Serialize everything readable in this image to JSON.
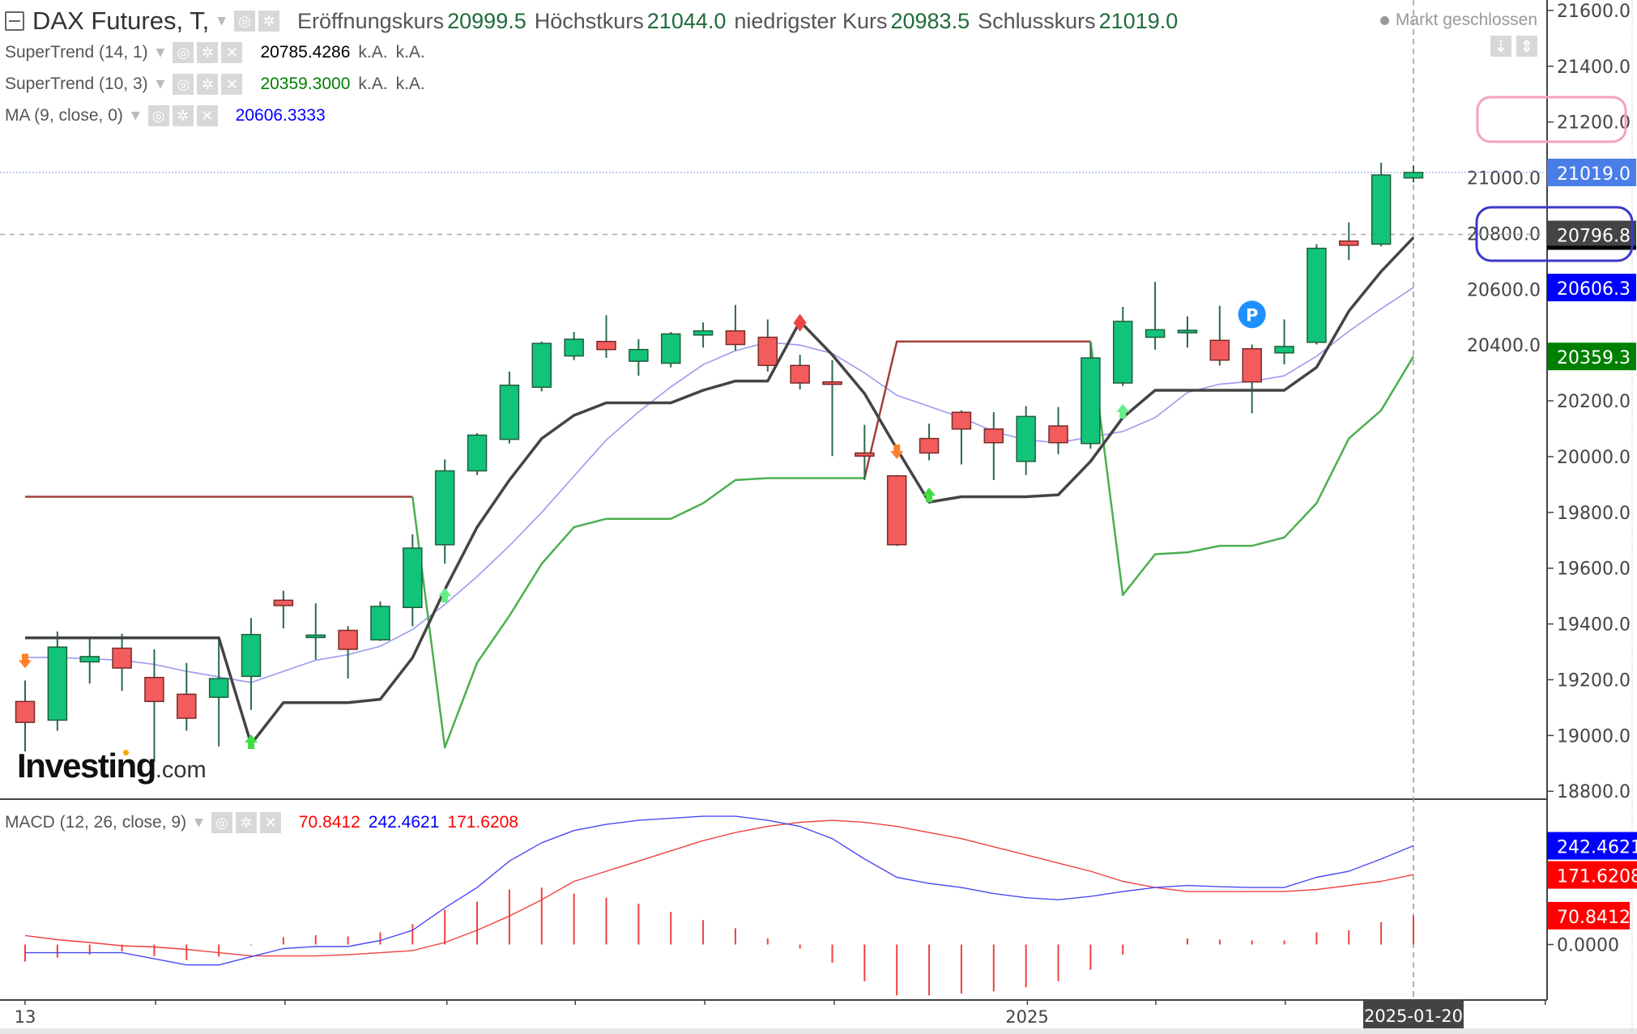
{
  "header": {
    "symbol": "DAX Futures, T,",
    "open_label": "Eröffnungskurs",
    "open": "20999.5",
    "high_label": "Höchstkurs",
    "high": "21044.0",
    "low_label": "niedrigster Kurs",
    "low": "20983.5",
    "close_label": "Schlusskurs",
    "close": "21019.0",
    "status": "Markt geschlossen"
  },
  "indicators": [
    {
      "name": "SuperTrend (14, 1)",
      "value": "20785.4286",
      "v2": "k.A.",
      "v3": "k.A.",
      "color": "#000000"
    },
    {
      "name": "SuperTrend (10, 3)",
      "value": "20359.3000",
      "v2": "k.A.",
      "v3": "k.A.",
      "color": "#008000"
    },
    {
      "name": "MA (9, close, 0)",
      "value": "20606.3333",
      "color": "#0000ff"
    }
  ],
  "macd_legend": {
    "name": "MACD (12, 26, close, 9)",
    "hist": "70.8412",
    "macd": "242.4621",
    "signal": "171.6208"
  },
  "icons": {
    "visibility": "eye-icon",
    "settings": "gear-icon",
    "remove": "close-icon",
    "collapse": "minus-square-icon",
    "scroll_down": "arrow-down-icon",
    "scroll_fit": "arrow-updown-icon"
  },
  "logo": {
    "main": "Investing",
    "domain": ".com"
  },
  "colors": {
    "up": "#12c47a",
    "down": "#f25c5c",
    "wick": "#2a6a4a",
    "supertrend14": "#444444",
    "supertrend_upper": "#a0403c",
    "supertrend_lower": "#4caf50",
    "ma": "#9a9af0",
    "macd": "#4a4af5",
    "signal": "#f04040",
    "hist": "#f04040"
  },
  "chart_data": [
    {
      "type": "candlestick",
      "ylim": [
        18800,
        21600
      ],
      "y_ticks": [
        "21600.0",
        "21400.0",
        "21200.0",
        "21000.0",
        "20800.0",
        "20600.0",
        "20400.0",
        "20200.0",
        "20000.0",
        "19800.0",
        "19600.0",
        "19400.0",
        "19200.0",
        "19000.0",
        "18800.0"
      ],
      "x_labels": [
        "13",
        "2025"
      ],
      "crosshair_date": "2025-01-20",
      "crosshair_price": "20796.8",
      "price_badges": [
        {
          "label": "21019.0",
          "value": 21019.0,
          "color": "#4a7de8"
        },
        {
          "label": "20796.8",
          "value": 20796.8,
          "color": "#444444"
        },
        {
          "label": "20606.3",
          "value": 20606.3,
          "color": "#0000ff"
        },
        {
          "label": "20359.3",
          "value": 20359.3,
          "color": "#008000"
        }
      ],
      "annotations": [
        {
          "target": "21200.0",
          "color": "#f5a0c0"
        },
        {
          "target": "20796.8",
          "color": "#3a3ac8"
        }
      ],
      "ohlc": [
        [
          19122,
          19197,
          18943,
          19047
        ],
        [
          19055,
          19373,
          19017,
          19317
        ],
        [
          19264,
          19354,
          19186,
          19283
        ],
        [
          19313,
          19365,
          19160,
          19242
        ],
        [
          19208,
          19309,
          18905,
          19122
        ],
        [
          19148,
          19260,
          19017,
          19062
        ],
        [
          19137,
          19354,
          18961,
          19204
        ],
        [
          19212,
          19421,
          19092,
          19362
        ],
        [
          19485,
          19519,
          19384,
          19466
        ],
        [
          19356,
          19474,
          19272,
          19360
        ],
        [
          19377,
          19392,
          19204,
          19309
        ],
        [
          19343,
          19481,
          19339,
          19463
        ],
        [
          19459,
          19721,
          19392,
          19672
        ],
        [
          19684,
          19990,
          19616,
          19949
        ],
        [
          19949,
          20084,
          19934,
          20077
        ],
        [
          20062,
          20305,
          20047,
          20256
        ],
        [
          20249,
          20413,
          20234,
          20406
        ],
        [
          20361,
          20447,
          20346,
          20421
        ],
        [
          20413,
          20507,
          20354,
          20384
        ],
        [
          20342,
          20421,
          20290,
          20384
        ],
        [
          20335,
          20447,
          20320,
          20440
        ],
        [
          20436,
          20481,
          20391,
          20451
        ],
        [
          20451,
          20544,
          20380,
          20402
        ],
        [
          20428,
          20492,
          20305,
          20327
        ],
        [
          20327,
          20365,
          20241,
          20264
        ],
        [
          20268,
          20346,
          20002,
          20264
        ],
        [
          20013,
          20114,
          19916,
          20002
        ],
        [
          19931,
          19934,
          19680,
          19684
        ],
        [
          20065,
          20118,
          19987,
          20013
        ],
        [
          20159,
          20166,
          19972,
          20099
        ],
        [
          20099,
          20159,
          19916,
          20050
        ],
        [
          19983,
          20181,
          19934,
          20144
        ],
        [
          20110,
          20178,
          20009,
          20050
        ],
        [
          20047,
          20410,
          20028,
          20354
        ],
        [
          20264,
          20537,
          20253,
          20485
        ],
        [
          20428,
          20627,
          20384,
          20455
        ],
        [
          20449,
          20503,
          20391,
          20453
        ],
        [
          20417,
          20541,
          20327,
          20346
        ],
        [
          20387,
          20402,
          20155,
          20268
        ],
        [
          20372,
          20492,
          20331,
          20395
        ],
        [
          20410,
          20762,
          20402,
          20747
        ],
        [
          20773,
          20840,
          20705,
          20758
        ],
        [
          20762,
          21054,
          20754,
          21010
        ],
        [
          20999.5,
          21044.0,
          20983.5,
          21019.0
        ]
      ],
      "supertrend_14_1": [
        19350,
        19350,
        19350,
        19350,
        19350,
        19350,
        19350,
        18969,
        19118,
        19118,
        19118,
        19130,
        19279,
        19523,
        19747,
        19916,
        20065,
        20148,
        20193,
        20193,
        20193,
        20238,
        20271,
        20271,
        20485,
        20365,
        20226,
        20028,
        19837,
        19856,
        19856,
        19856,
        19863,
        19983,
        20140,
        20238,
        20238,
        20238,
        20238,
        20238,
        20320,
        20522,
        20664,
        20785.4286
      ],
      "supertrend_10_3_upper": [
        19856,
        19856,
        19856,
        19856,
        19856,
        19856,
        19856,
        19856,
        19856,
        19856,
        19856,
        19856,
        19856,
        null,
        null,
        null,
        null,
        null,
        null,
        null,
        null,
        null,
        null,
        null,
        null,
        null,
        19923,
        20413,
        20413,
        20413,
        20413,
        20413,
        20413,
        20413,
        null,
        null,
        null,
        null,
        null,
        null,
        null,
        null,
        null,
        null
      ],
      "supertrend_10_3_lower": [
        null,
        null,
        null,
        null,
        null,
        null,
        null,
        null,
        null,
        null,
        null,
        null,
        19856,
        18957,
        19261,
        19429,
        19616,
        19747,
        19777,
        19777,
        19777,
        19833,
        19916,
        19923,
        19923,
        19923,
        19923,
        null,
        null,
        null,
        null,
        null,
        null,
        20413,
        19504,
        19650,
        19657,
        19680,
        19680,
        19710,
        19833,
        20065,
        20166,
        20359.3
      ],
      "ma_9": [
        19280,
        19280,
        19275,
        19270,
        19255,
        19230,
        19210,
        19190,
        19230,
        19270,
        19290,
        19320,
        19380,
        19470,
        19570,
        19680,
        19800,
        19930,
        20060,
        20160,
        20250,
        20330,
        20380,
        20410,
        20400,
        20370,
        20300,
        20220,
        20180,
        20140,
        20090,
        20060,
        20050,
        20070,
        20090,
        20140,
        20230,
        20260,
        20270,
        20290,
        20360,
        20450,
        20530,
        20606.3333
      ],
      "markers": [
        {
          "index": 0,
          "type": "sell-arrow",
          "price": 19270,
          "color": "#ff7f2a"
        },
        {
          "index": 7,
          "type": "buy-arrow",
          "price": 18975,
          "color": "#44dd44"
        },
        {
          "index": 13,
          "type": "buy-arrow",
          "price": 19500,
          "color": "#66ee88"
        },
        {
          "index": 24,
          "type": "sell-diamond",
          "price": 20480,
          "color": "#ee4444"
        },
        {
          "index": 27,
          "type": "sell-arrow",
          "price": 20020,
          "color": "#ff7f2a"
        },
        {
          "index": 28,
          "type": "buy-arrow",
          "price": 19860,
          "color": "#44dd44"
        },
        {
          "index": 34,
          "type": "buy-arrow",
          "price": 20160,
          "color": "#66ee88"
        }
      ],
      "event_badge": {
        "index": 38,
        "label": "P",
        "price": 20510,
        "color": "#1e90ff"
      }
    },
    {
      "type": "line",
      "title": "MACD (12, 26, close, 9)",
      "y_ticks": [
        "0.0000"
      ],
      "macd": [
        -20,
        -20,
        -20,
        -20,
        -35,
        -50,
        -50,
        -30,
        -10,
        -5,
        -5,
        10,
        35,
        90,
        140,
        205,
        250,
        280,
        295,
        305,
        310,
        315,
        315,
        305,
        290,
        260,
        210,
        165,
        150,
        140,
        125,
        115,
        110,
        118,
        130,
        140,
        145,
        142,
        140,
        140,
        165,
        180,
        210,
        242.4621
      ],
      "signal": [
        22,
        12,
        5,
        -3,
        -6,
        -12,
        -20,
        -28,
        -28,
        -28,
        -25,
        -20,
        -15,
        5,
        35,
        70,
        110,
        155,
        180,
        205,
        230,
        255,
        275,
        290,
        300,
        305,
        300,
        290,
        275,
        260,
        240,
        220,
        200,
        180,
        155,
        140,
        130,
        130,
        130,
        130,
        135,
        145,
        155,
        171.6208
      ],
      "histogram": [
        -42,
        -32,
        -25,
        -17,
        -29,
        -38,
        -30,
        -2,
        18,
        23,
        20,
        30,
        50,
        85,
        105,
        135,
        140,
        125,
        115,
        100,
        80,
        60,
        40,
        15,
        -10,
        -45,
        -90,
        -125,
        -125,
        -120,
        -115,
        -105,
        -90,
        -62,
        -25,
        0,
        15,
        12,
        10,
        10,
        30,
        35,
        55,
        70.8412
      ],
      "badges": [
        {
          "label": "242.4621",
          "value": 242.4621,
          "color": "#0000ff"
        },
        {
          "label": "171.6208",
          "value": 171.6208,
          "color": "#ff0000"
        },
        {
          "label": "70.8412",
          "value": 70.8412,
          "color": "#ff0000"
        }
      ]
    }
  ]
}
